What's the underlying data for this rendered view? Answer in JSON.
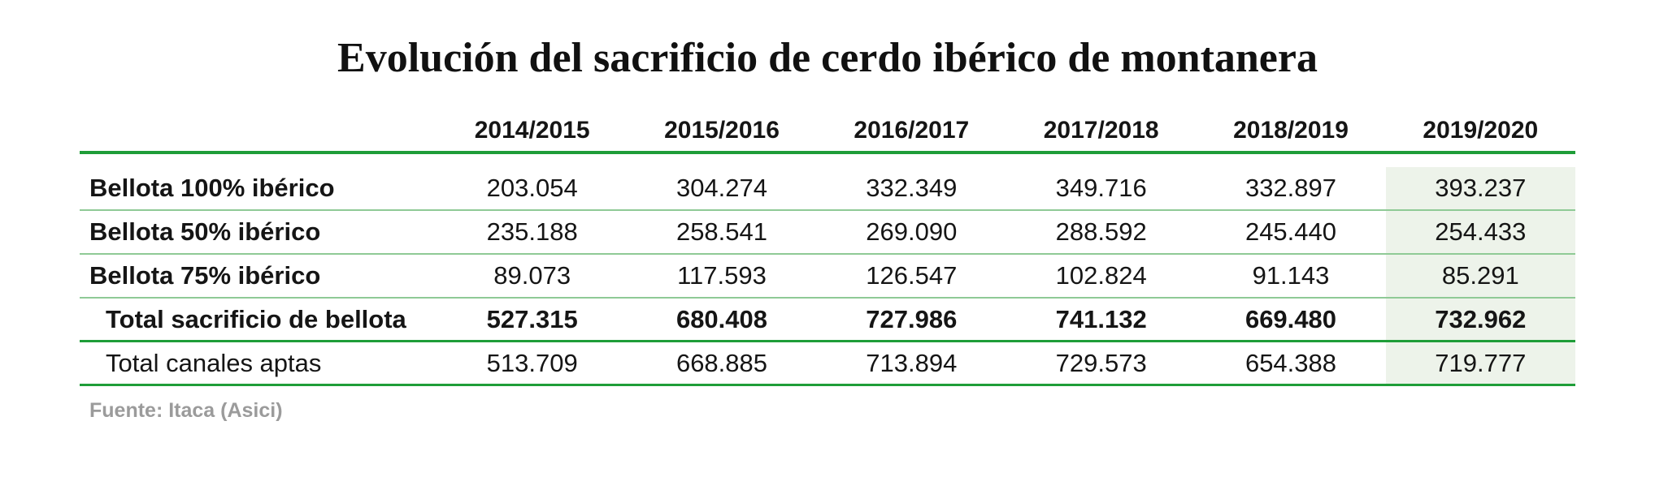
{
  "title": "Evolución del sacrificio de cerdo ibérico de montanera",
  "source_note": "Fuente: Itaca (Asici)",
  "colors": {
    "accent_green": "#1f9d38",
    "separator_green": "#8fca96",
    "highlight_background": "#edf3ea",
    "source_gray": "#9b9b9b"
  },
  "chart_data": {
    "type": "table",
    "title": "Evolución del sacrificio de cerdo ibérico de montanera",
    "columns": [
      "2014/2015",
      "2015/2016",
      "2016/2017",
      "2017/2018",
      "2018/2019",
      "2019/2020"
    ],
    "highlighted_column": "2019/2020",
    "rows": [
      {
        "label": "Bellota 100% ibérico",
        "values": [
          "203.054",
          "304.274",
          "332.349",
          "349.716",
          "332.897",
          "393.237"
        ],
        "bold_label": true,
        "bold_values": false,
        "indent": false,
        "rule": "light"
      },
      {
        "label": "Bellota 50% ibérico",
        "values": [
          "235.188",
          "258.541",
          "269.090",
          "288.592",
          "245.440",
          "254.433"
        ],
        "bold_label": true,
        "bold_values": false,
        "indent": false,
        "rule": "light"
      },
      {
        "label": "Bellota 75% ibérico",
        "values": [
          "89.073",
          "117.593",
          "126.547",
          "102.824",
          "91.143",
          "85.291"
        ],
        "bold_label": true,
        "bold_values": false,
        "indent": false,
        "rule": "light"
      },
      {
        "label": "Total sacrificio de bellota",
        "values": [
          "527.315",
          "680.408",
          "727.986",
          "741.132",
          "669.480",
          "732.962"
        ],
        "bold_label": true,
        "bold_values": true,
        "indent": true,
        "rule": "strong"
      },
      {
        "label": "Total canales aptas",
        "values": [
          "513.709",
          "668.885",
          "713.894",
          "729.573",
          "654.388",
          "719.777"
        ],
        "bold_label": false,
        "bold_values": false,
        "indent": true,
        "rule": "strong"
      }
    ],
    "source": "Fuente: Itaca (Asici)"
  }
}
